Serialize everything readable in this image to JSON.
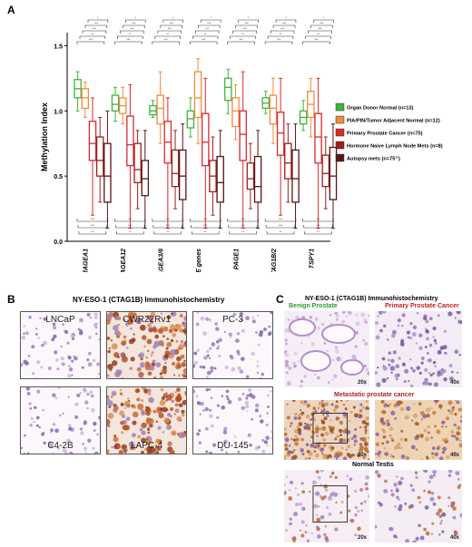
{
  "panel_a": {
    "letter": "A",
    "chart_data": {
      "type": "box",
      "ylabel": "Methylation Index",
      "ylim": [
        0,
        1.6
      ],
      "yticks": [
        "0.0",
        "0.5",
        "1.0",
        "1.5"
      ],
      "categories": [
        "MAGEA1",
        "MAGEA12",
        "MAGEA3/6",
        "GAGE genes",
        "PAGE1",
        "CTAG1B/2",
        "TSPY1"
      ],
      "legend_position": "right",
      "series": [
        {
          "name": "Organ Donor Normal (n=13)",
          "color": "#3cb43c",
          "boxes": [
            [
              1.0,
              1.1,
              1.17,
              1.24,
              1.3
            ],
            [
              0.92,
              1.0,
              1.05,
              1.12,
              1.18
            ],
            [
              0.95,
              0.97,
              1.0,
              1.04,
              1.08
            ],
            [
              0.8,
              0.87,
              0.94,
              1.0,
              1.1
            ],
            [
              0.98,
              1.08,
              1.18,
              1.25,
              1.32
            ],
            [
              0.98,
              1.02,
              1.06,
              1.1,
              1.15
            ],
            [
              0.85,
              0.9,
              0.95,
              1.0,
              1.08
            ]
          ]
        },
        {
          "name": "PIA/PIN/Tumor Adjacent Normal (n=12)",
          "color": "#f08a3c",
          "boxes": [
            [
              0.95,
              1.02,
              1.1,
              1.17,
              1.22
            ],
            [
              0.9,
              0.98,
              1.04,
              1.1,
              1.18
            ],
            [
              0.75,
              0.9,
              1.02,
              1.12,
              1.3
            ],
            [
              0.75,
              0.95,
              1.1,
              1.3,
              1.4
            ],
            [
              0.78,
              0.88,
              1.0,
              1.1,
              1.2
            ],
            [
              0.75,
              0.9,
              1.02,
              1.12,
              1.25
            ],
            [
              0.8,
              0.95,
              1.05,
              1.15,
              1.25
            ]
          ]
        },
        {
          "name": "Primary Prostate Cancer (n=75)",
          "color": "#dc2828",
          "boxes": [
            [
              0.2,
              0.62,
              0.75,
              0.92,
              1.1
            ],
            [
              0.1,
              0.58,
              0.74,
              0.96,
              1.2
            ],
            [
              0.1,
              0.6,
              0.76,
              0.92,
              1.1
            ],
            [
              0.1,
              0.58,
              0.76,
              0.98,
              1.25
            ],
            [
              0.1,
              0.62,
              0.82,
              1.0,
              1.3
            ],
            [
              0.2,
              0.66,
              0.83,
              0.99,
              1.25
            ],
            [
              0.1,
              0.6,
              0.8,
              0.98,
              1.25
            ]
          ]
        },
        {
          "name": "Hormone Naive Lymph Node Mets (n=8)",
          "color": "#a01e1e",
          "boxes": [
            [
              0.3,
              0.5,
              0.62,
              0.8,
              0.95
            ],
            [
              0.25,
              0.45,
              0.55,
              0.75,
              0.85
            ],
            [
              0.25,
              0.42,
              0.52,
              0.7,
              0.85
            ],
            [
              0.2,
              0.38,
              0.5,
              0.62,
              0.8
            ],
            [
              0.25,
              0.4,
              0.48,
              0.6,
              0.75
            ],
            [
              0.3,
              0.48,
              0.6,
              0.75,
              0.9
            ],
            [
              0.25,
              0.42,
              0.52,
              0.66,
              0.8
            ]
          ]
        },
        {
          "name": "Autopsy mets (n=75¹¹)",
          "color": "#5a1414",
          "boxes": [
            [
              0.1,
              0.3,
              0.5,
              0.75,
              1.0
            ],
            [
              0.1,
              0.35,
              0.48,
              0.62,
              0.85
            ],
            [
              0.1,
              0.32,
              0.5,
              0.7,
              0.9
            ],
            [
              0.1,
              0.3,
              0.45,
              0.65,
              0.85
            ],
            [
              0.1,
              0.3,
              0.42,
              0.65,
              0.85
            ],
            [
              0.1,
              0.3,
              0.48,
              0.7,
              0.9
            ],
            [
              0.1,
              0.32,
              0.5,
              0.72,
              0.9
            ]
          ]
        }
      ]
    },
    "sig_top": [
      "***",
      "**",
      "***",
      "***",
      "*"
    ],
    "sig_bottom": [
      "***",
      "***",
      "**"
    ]
  },
  "panel_b": {
    "letter": "B",
    "title": "NY-ESO-1 (CTAG1B) Immunohistochemistry",
    "cells": [
      {
        "label": "LNCaP",
        "stain": "low"
      },
      {
        "label": "CWR22Rv1",
        "stain": "high"
      },
      {
        "label": "PC-3",
        "stain": "low"
      },
      {
        "label": "C4-2B",
        "stain": "low"
      },
      {
        "label": "LAPC-4",
        "stain": "high"
      },
      {
        "label": "DU-145",
        "stain": "low"
      }
    ]
  },
  "panel_c": {
    "letter": "C",
    "title": "NY-ESO-1 (CTAG1B) Immunohistochemistry",
    "benign_label": "Benign Prostate",
    "benign_color": "#2f9a2f",
    "primary_label": "Primary Prostate Cancer",
    "primary_color": "#c41e1e",
    "metastatic_label": "Metastatic prostate cancer",
    "metastatic_color": "#b22222",
    "testis_label": "Normal Testis",
    "mag_20x": "20x",
    "mag_40x": "40x"
  }
}
